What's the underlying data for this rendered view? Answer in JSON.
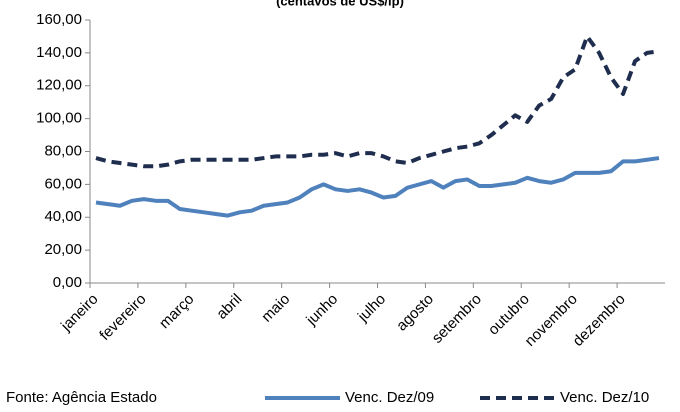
{
  "chart_data": {
    "type": "line",
    "title": "(centavos de US$/lp)",
    "source": "Fonte: Agência Estado",
    "categories": [
      "janeiro",
      null,
      null,
      null,
      "fevereiro",
      null,
      null,
      null,
      "março",
      null,
      null,
      null,
      "abril",
      null,
      null,
      null,
      "maio",
      null,
      null,
      null,
      "junho",
      null,
      null,
      null,
      "julho",
      null,
      null,
      null,
      "agosto",
      null,
      null,
      null,
      "setembro",
      null,
      null,
      null,
      "outubro",
      null,
      null,
      null,
      "novembro",
      null,
      null,
      null,
      "dezembro",
      null,
      null,
      null
    ],
    "series": [
      {
        "name": "Venc. Dez/09",
        "color": "#4f81bd",
        "dashed": false,
        "values": [
          49,
          48,
          47,
          50,
          51,
          50,
          50,
          45,
          44,
          43,
          42,
          41,
          43,
          44,
          47,
          48,
          49,
          52,
          57,
          60,
          57,
          56,
          57,
          55,
          52,
          53,
          58,
          60,
          62,
          58,
          62,
          63,
          59,
          59,
          60,
          61,
          64,
          62,
          61,
          63,
          67,
          67,
          67,
          68,
          74,
          74,
          75,
          76
        ]
      },
      {
        "name": "Venc. Dez/10",
        "color": "#1f2d4e",
        "dashed": true,
        "values": [
          76,
          74,
          73,
          72,
          71,
          71,
          72,
          74,
          75,
          75,
          75,
          75,
          75,
          75,
          76,
          77,
          77,
          77,
          78,
          78,
          79,
          77,
          79,
          79,
          77,
          74,
          73,
          76,
          78,
          80,
          82,
          83,
          85,
          90,
          96,
          102,
          98,
          108,
          112,
          125,
          130,
          150,
          140,
          125,
          115,
          135,
          140,
          141
        ]
      }
    ],
    "ylim": [
      0,
      160
    ],
    "yticks": [
      {
        "value": 0,
        "label": "0,00"
      },
      {
        "value": 20,
        "label": "20,00"
      },
      {
        "value": 40,
        "label": "40,00"
      },
      {
        "value": 60,
        "label": "60,00"
      },
      {
        "value": 80,
        "label": "80,00"
      },
      {
        "value": 100,
        "label": "100,00"
      },
      {
        "value": 120,
        "label": "120,00"
      },
      {
        "value": 140,
        "label": "140,00"
      },
      {
        "value": 160,
        "label": "160,00"
      }
    ],
    "grid": false
  }
}
